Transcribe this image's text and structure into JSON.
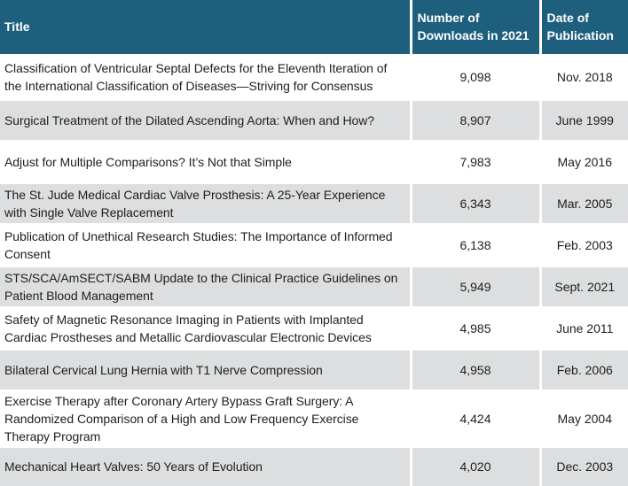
{
  "table": {
    "headers": {
      "title": "Title",
      "downloads": "Number of Downloads in 2021",
      "date": "Date of Publication"
    },
    "rows": [
      {
        "title": "Classification of Ventricular Septal Defects for the Eleventh Iteration of the International Classification of Diseases—Striving for Consensus",
        "downloads": "9,098",
        "date": "Nov. 2018"
      },
      {
        "title": "Surgical Treatment of the Dilated Ascending Aorta: When and How?",
        "downloads": "8,907",
        "date": "June 1999"
      },
      {
        "title": "Adjust for Multiple Comparisons? It’s Not that Simple",
        "downloads": "7,983",
        "date": "May 2016"
      },
      {
        "title": "The St. Jude Medical Cardiac Valve Prosthesis: A 25-Year Experience with Single Valve Replacement",
        "downloads": "6,343",
        "date": "Mar. 2005"
      },
      {
        "title": "Publication of Unethical Research Studies: The Importance of Informed Consent",
        "downloads": "6,138",
        "date": "Feb. 2003"
      },
      {
        "title": "STS/SCA/AmSECT/SABM Update to the Clinical Practice Guidelines on Patient Blood Management",
        "downloads": "5,949",
        "date": "Sept. 2021"
      },
      {
        "title": "Safety of Magnetic Resonance Imaging in Patients with Implanted Cardiac Prostheses and Metallic Cardiovascular Electronic Devices",
        "downloads": "4,985",
        "date": "June 2011"
      },
      {
        "title": "Bilateral Cervical Lung Hernia with T1 Nerve Compression",
        "downloads": "4,958",
        "date": "Feb. 2006"
      },
      {
        "title": "Exercise Therapy after Coronary Artery Bypass Graft Surgery: A Randomized Comparison of a High and Low Frequency Exercise Therapy Program",
        "downloads": "4,424",
        "date": "May 2004"
      },
      {
        "title": "Mechanical Heart Valves: 50 Years of Evolution",
        "downloads": "4,020",
        "date": "Dec. 2003"
      }
    ]
  },
  "colors": {
    "header_bg": "#1f5f7e",
    "header_text": "#ffffff",
    "stripe_bg": "#dddedf",
    "body_text": "#1e1e1e"
  }
}
